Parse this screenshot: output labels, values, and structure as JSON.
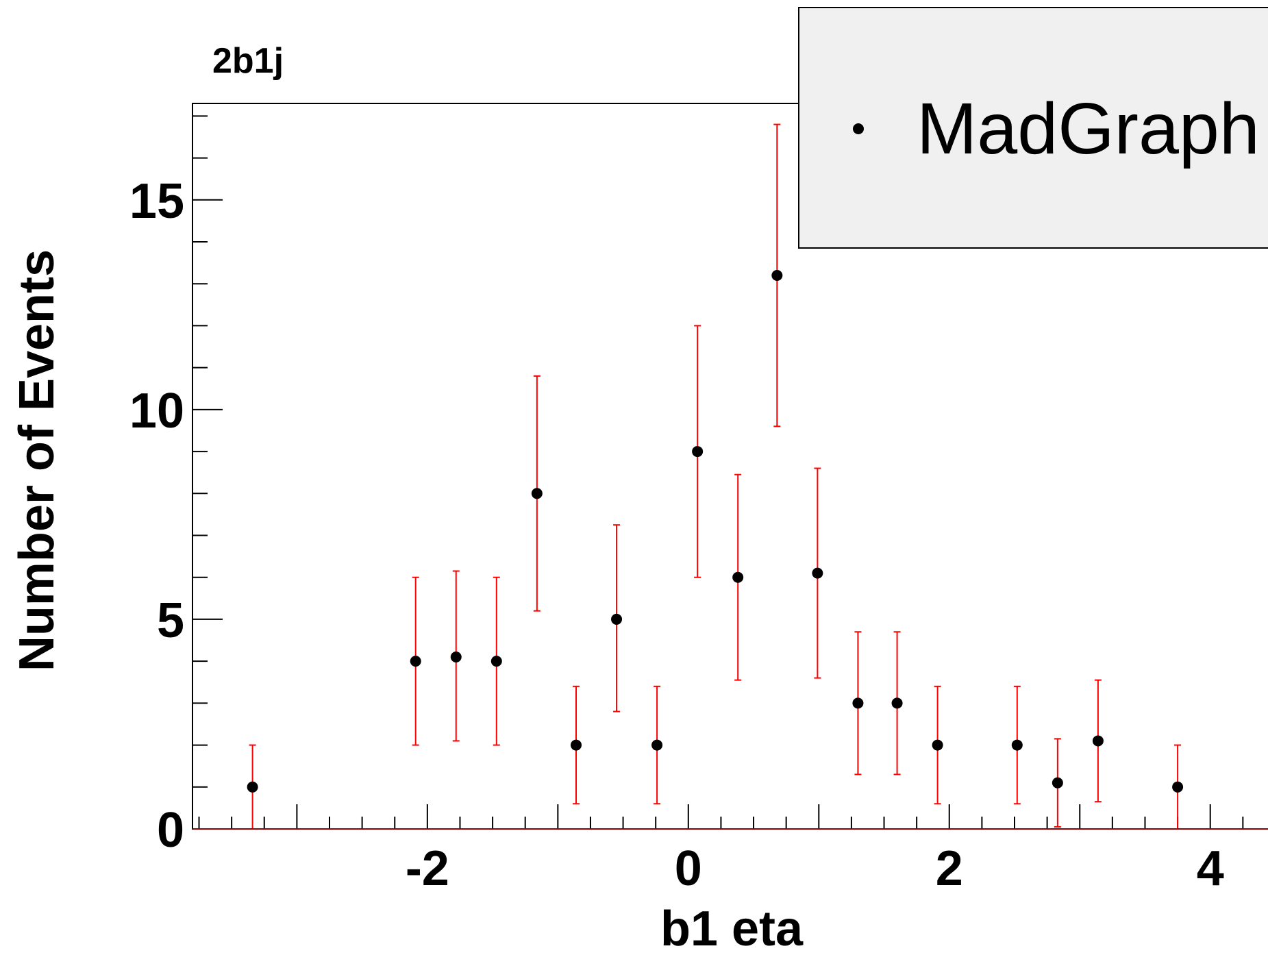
{
  "chart_data": {
    "type": "scatter",
    "title": "2b1j",
    "xlabel": "b1 eta",
    "ylabel": "Number of Events",
    "xlim": [
      -3.8,
      4.6
    ],
    "ylim": [
      0,
      17.3
    ],
    "x_ticks": [
      -2,
      0,
      2,
      4
    ],
    "x_tick_labels": [
      "-2",
      "0",
      "2",
      "4"
    ],
    "y_ticks": [
      0,
      5,
      10,
      15
    ],
    "y_tick_labels": [
      "0",
      "5",
      "10",
      "15"
    ],
    "grid": false,
    "legend_position": "top-right",
    "colors": {
      "marker": "#000000",
      "error_bar": "#ff0000",
      "legend_bg": "#f0f0f0"
    },
    "series": [
      {
        "name": "MadGraph",
        "points": [
          {
            "x": -3.34,
            "y": 1.0,
            "lo": 0.0,
            "hi": 2.0
          },
          {
            "x": -2.09,
            "y": 4.0,
            "lo": 2.0,
            "hi": 6.0
          },
          {
            "x": -1.78,
            "y": 4.1,
            "lo": 2.1,
            "hi": 6.15
          },
          {
            "x": -1.47,
            "y": 4.0,
            "lo": 2.0,
            "hi": 6.0
          },
          {
            "x": -1.16,
            "y": 8.0,
            "lo": 5.2,
            "hi": 10.8
          },
          {
            "x": -0.86,
            "y": 2.0,
            "lo": 0.6,
            "hi": 3.4
          },
          {
            "x": -0.55,
            "y": 5.0,
            "lo": 2.8,
            "hi": 7.25
          },
          {
            "x": -0.24,
            "y": 2.0,
            "lo": 0.6,
            "hi": 3.4
          },
          {
            "x": 0.07,
            "y": 9.0,
            "lo": 6.0,
            "hi": 12.0
          },
          {
            "x": 0.38,
            "y": 6.0,
            "lo": 3.55,
            "hi": 8.45
          },
          {
            "x": 0.68,
            "y": 13.2,
            "lo": 9.6,
            "hi": 16.8
          },
          {
            "x": 0.99,
            "y": 6.1,
            "lo": 3.6,
            "hi": 8.6
          },
          {
            "x": 1.3,
            "y": 3.0,
            "lo": 1.3,
            "hi": 4.7
          },
          {
            "x": 1.6,
            "y": 3.0,
            "lo": 1.3,
            "hi": 4.7
          },
          {
            "x": 1.91,
            "y": 2.0,
            "lo": 0.6,
            "hi": 3.4
          },
          {
            "x": 2.52,
            "y": 2.0,
            "lo": 0.6,
            "hi": 3.4
          },
          {
            "x": 2.83,
            "y": 1.1,
            "lo": 0.05,
            "hi": 2.15
          },
          {
            "x": 3.14,
            "y": 2.1,
            "lo": 0.65,
            "hi": 3.55
          },
          {
            "x": 3.75,
            "y": 1.0,
            "lo": 0.0,
            "hi": 2.0
          }
        ]
      }
    ]
  }
}
